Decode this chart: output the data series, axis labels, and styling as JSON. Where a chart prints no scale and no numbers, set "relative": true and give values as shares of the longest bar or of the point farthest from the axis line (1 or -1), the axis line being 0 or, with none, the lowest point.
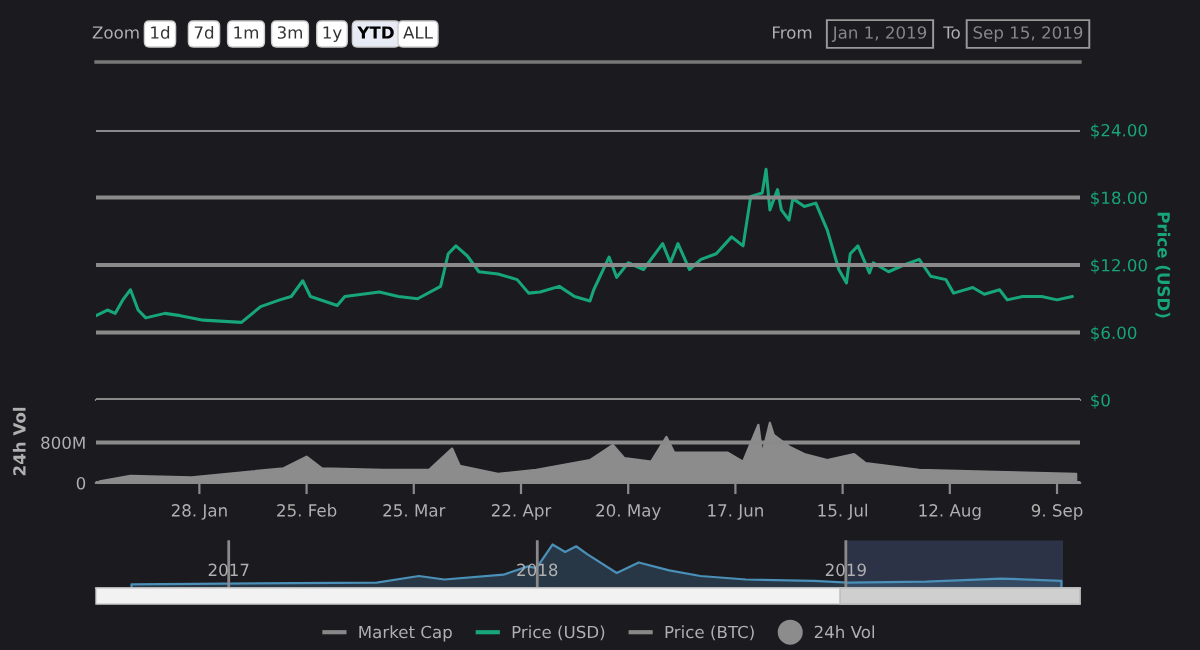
{
  "chart_data": [
    {
      "type": "line",
      "ylabel": "Price (USD)",
      "xlim": [
        "2019-01-01",
        "2019-09-15"
      ],
      "ylim": [
        0,
        24
      ],
      "yticks": [
        {
          "value": 0,
          "label": "$0"
        },
        {
          "value": 6,
          "label": "$6.00"
        },
        {
          "value": 12,
          "label": "$12.00"
        },
        {
          "value": 18,
          "label": "$18.00"
        },
        {
          "value": 24,
          "label": "$24.00"
        }
      ],
      "grid": "y",
      "tick_labels": "y",
      "legend": "bottom",
      "annotations": [
        "Zoom",
        "1d",
        "7d",
        "1m",
        "3m",
        "1y",
        "YTD",
        "ALL",
        "From",
        "Jan 1, 2019",
        "To",
        "Sep 15, 2019"
      ],
      "x": [
        "2019-01-01",
        "2019-01-04",
        "2019-01-06",
        "2019-01-08",
        "2019-01-10",
        "2019-01-12",
        "2019-01-14",
        "2019-01-19",
        "2019-01-23",
        "2019-01-29",
        "2019-02-08",
        "2019-02-13",
        "2019-02-18",
        "2019-02-21",
        "2019-02-24",
        "2019-02-26",
        "2019-03-05",
        "2019-03-07",
        "2019-03-16",
        "2019-03-21",
        "2019-03-26",
        "2019-04-01",
        "2019-04-03",
        "2019-04-05",
        "2019-04-08",
        "2019-04-11",
        "2019-04-16",
        "2019-04-21",
        "2019-04-24",
        "2019-04-27",
        "2019-05-02",
        "2019-05-06",
        "2019-05-10",
        "2019-05-11",
        "2019-05-15",
        "2019-05-17",
        "2019-05-20",
        "2019-05-24",
        "2019-05-29",
        "2019-05-31",
        "2019-06-02",
        "2019-06-05",
        "2019-06-08",
        "2019-06-12",
        "2019-06-16",
        "2019-06-19",
        "2019-06-21",
        "2019-06-24",
        "2019-06-25",
        "2019-06-26",
        "2019-06-28",
        "2019-06-29",
        "2019-07-01",
        "2019-07-02",
        "2019-07-05",
        "2019-07-08",
        "2019-07-11",
        "2019-07-14",
        "2019-07-16",
        "2019-07-17",
        "2019-07-19",
        "2019-07-22",
        "2019-07-23",
        "2019-07-27",
        "2019-07-31",
        "2019-08-04",
        "2019-08-07",
        "2019-08-11",
        "2019-08-13",
        "2019-08-18",
        "2019-08-21",
        "2019-08-25",
        "2019-08-27",
        "2019-08-31",
        "2019-09-05",
        "2019-09-09",
        "2019-09-13"
      ],
      "series": [
        {
          "name": "Market Cap",
          "color": "#888888",
          "values": [
            null,
            null,
            null,
            null,
            null,
            null,
            null,
            null,
            null,
            null,
            null,
            null,
            null,
            null,
            null,
            null,
            null,
            null,
            null,
            null,
            null,
            null,
            null,
            null,
            null,
            null,
            null,
            null,
            null,
            null,
            null,
            null,
            null,
            null,
            null,
            null,
            null,
            null,
            null,
            null,
            null,
            null,
            null,
            null,
            null,
            null,
            null,
            null,
            null,
            null,
            null,
            null,
            null,
            null,
            null,
            null,
            null,
            null,
            null,
            null,
            null,
            null,
            null,
            null,
            null,
            null,
            null,
            null,
            null,
            null,
            null,
            null,
            null,
            null,
            null,
            null,
            null
          ]
        },
        {
          "name": "Price (USD)",
          "color": "#17a57b",
          "values": [
            7.5,
            8.0,
            7.7,
            8.9,
            9.8,
            8.0,
            7.3,
            7.7,
            7.5,
            7.1,
            6.9,
            8.3,
            8.9,
            9.2,
            10.6,
            9.2,
            8.4,
            9.2,
            9.6,
            9.2,
            9.0,
            10.1,
            13.0,
            13.7,
            12.8,
            11.4,
            11.2,
            10.7,
            9.5,
            9.6,
            10.1,
            9.2,
            8.8,
            9.8,
            12.7,
            10.9,
            12.2,
            11.6,
            13.9,
            12.2,
            13.9,
            11.6,
            12.5,
            13.0,
            14.5,
            13.7,
            18.1,
            18.4,
            20.5,
            16.9,
            18.7,
            16.9,
            16.0,
            17.9,
            17.2,
            17.5,
            15.1,
            11.6,
            10.4,
            13.0,
            13.7,
            11.3,
            12.2,
            11.4,
            12.0,
            12.5,
            11.0,
            10.7,
            9.5,
            10.0,
            9.4,
            9.8,
            8.9,
            9.2,
            9.2,
            8.9,
            9.2
          ]
        },
        {
          "name": "Price (BTC)",
          "color": "#888888",
          "values": [
            null,
            null,
            null,
            null,
            null,
            null,
            null,
            null,
            null,
            null,
            null,
            null,
            null,
            null,
            null,
            null,
            null,
            null,
            null,
            null,
            null,
            null,
            null,
            null,
            null,
            null,
            null,
            null,
            null,
            null,
            null,
            null,
            null,
            null,
            null,
            null,
            null,
            null,
            null,
            null,
            null,
            null,
            null,
            null,
            null,
            null,
            null,
            null,
            null,
            null,
            null,
            null,
            null,
            null,
            null,
            null,
            null,
            null,
            null,
            null,
            null,
            null,
            null,
            null,
            null,
            null,
            null,
            null,
            null,
            null,
            null,
            null,
            null,
            null,
            null,
            null,
            null
          ]
        }
      ]
    },
    {
      "type": "area",
      "ylabel": "24h Vol",
      "xlim": [
        "2019-01-01",
        "2019-09-15"
      ],
      "ylim": [
        0,
        1640
      ],
      "yticks": [
        0,
        {
          "value": 800,
          "label": "800M"
        }
      ],
      "grid": "y",
      "legend": "bottom",
      "xticks": [
        {
          "value": "2019-01-28",
          "label": "28. Jan"
        },
        {
          "value": "2019-02-25",
          "label": "25. Feb"
        },
        {
          "value": "2019-03-25",
          "label": "25. Mar"
        },
        {
          "value": "2019-04-22",
          "label": "22. Apr"
        },
        {
          "value": "2019-05-20",
          "label": "20. May"
        },
        {
          "value": "2019-06-17",
          "label": "17. Jun"
        },
        {
          "value": "2019-07-15",
          "label": "15. Jul"
        },
        {
          "value": "2019-08-12",
          "label": "12. Aug"
        },
        {
          "value": "2019-09-09",
          "label": "9. Sep"
        }
      ],
      "x": [
        "2019-01-02",
        "2019-01-10",
        "2019-01-26",
        "2019-02-11",
        "2019-02-19",
        "2019-02-25",
        "2019-03-01",
        "2019-03-17",
        "2019-03-29",
        "2019-04-04",
        "2019-04-06",
        "2019-04-16",
        "2019-04-26",
        "2019-05-10",
        "2019-05-16",
        "2019-05-19",
        "2019-05-26",
        "2019-05-30",
        "2019-06-01",
        "2019-06-15",
        "2019-06-19",
        "2019-06-23",
        "2019-06-24",
        "2019-06-26",
        "2019-06-27",
        "2019-07-01",
        "2019-07-05",
        "2019-07-11",
        "2019-07-18",
        "2019-07-21",
        "2019-08-04",
        "2019-08-24",
        "2019-09-14"
      ],
      "series": [
        {
          "name": "24h Vol",
          "color": "#8c8c8c",
          "values": [
            30,
            140,
            110,
            230,
            290,
            520,
            290,
            260,
            260,
            680,
            340,
            180,
            260,
            450,
            750,
            490,
            420,
            910,
            600,
            600,
            420,
            1150,
            570,
            1190,
            950,
            720,
            570,
            450,
            570,
            390,
            260,
            220,
            180
          ]
        }
      ]
    },
    {
      "type": "area",
      "relative": true,
      "xlim": [
        "2016-07-28",
        "2019-10-05"
      ],
      "xticks": [
        {
          "value": "2017-01-01",
          "label": "2017"
        },
        {
          "value": "2018-01-01",
          "label": "2018"
        },
        {
          "value": "2019-01-01",
          "label": "2019"
        }
      ],
      "grid": "x",
      "bands": [
        {
          "axis": "x",
          "from": "2019-01-01",
          "to": "2019-09-15",
          "color": "#3a4560"
        }
      ],
      "x": [
        "2016-09-08",
        "2017-06-25",
        "2017-08-14",
        "2017-09-13",
        "2017-11-22",
        "2017-12-21",
        "2017-12-31",
        "2018-01-19",
        "2018-02-03",
        "2018-02-16",
        "2018-03-01",
        "2018-04-05",
        "2018-05-01",
        "2018-06-06",
        "2018-07-13",
        "2018-09-05",
        "2018-11-24",
        "2019-01-04",
        "2019-04-06",
        "2019-07-04",
        "2019-09-13"
      ],
      "series": [
        {
          "color": "#4a90b8",
          "values": [
            0.09,
            0.13,
            0.28,
            0.2,
            0.31,
            0.5,
            0.46,
            1.0,
            0.83,
            0.96,
            0.78,
            0.35,
            0.59,
            0.41,
            0.28,
            0.2,
            0.17,
            0.13,
            0.15,
            0.22,
            0.17
          ]
        }
      ]
    }
  ]
}
